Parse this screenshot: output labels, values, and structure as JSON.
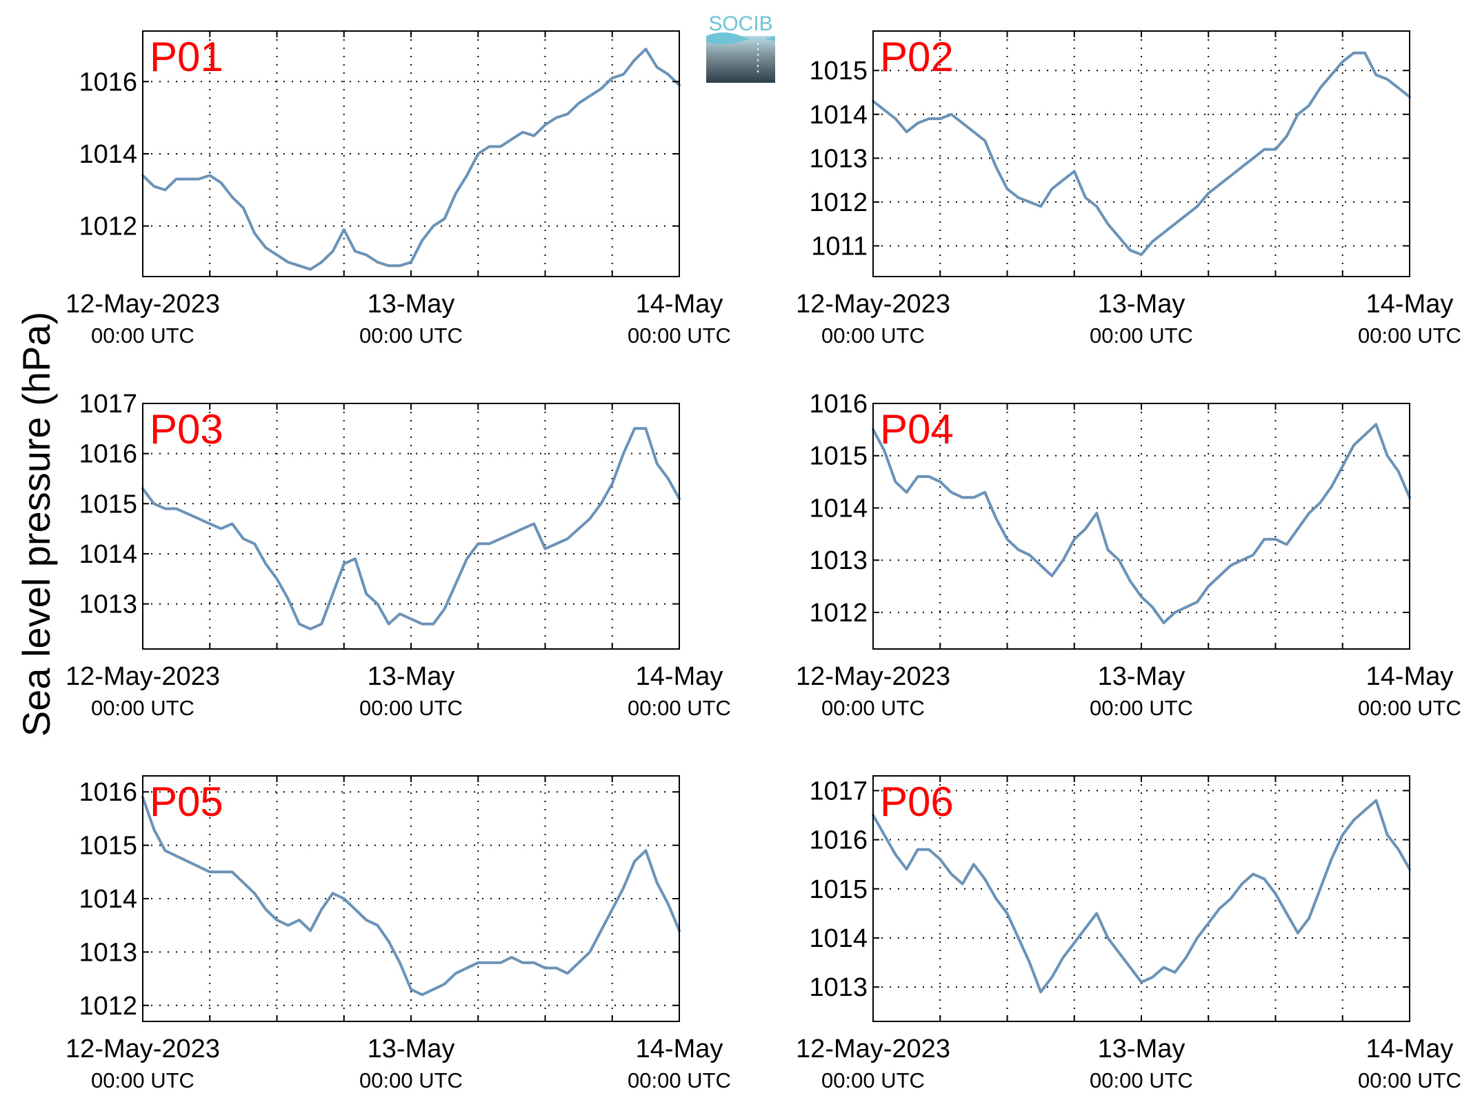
{
  "ylabel": "Sea level pressure (hPa)",
  "logo": {
    "text": "SOCIB",
    "colors": [
      "#6fc3d6",
      "#b8dde6",
      "#7a8c94",
      "#2c3e48"
    ]
  },
  "colors": {
    "series": "#6b93b8",
    "panel_label": "#ff0000"
  },
  "chart_data": [
    {
      "type": "line",
      "label": "P01",
      "x_ticks": [
        "12-May-2023",
        "13-May",
        "14-May"
      ],
      "x_tick_sublabels": [
        "00:00 UTC",
        "00:00 UTC",
        "00:00 UTC"
      ],
      "xlim": [
        0,
        48
      ],
      "ylim": [
        1010.6,
        1017.4
      ],
      "yticks": [
        1012,
        1014,
        1016
      ],
      "grid": true,
      "x": [
        0,
        1,
        2,
        3,
        4,
        5,
        6,
        7,
        8,
        9,
        10,
        11,
        12,
        13,
        14,
        15,
        16,
        17,
        18,
        19,
        20,
        21,
        22,
        23,
        24,
        25,
        26,
        27,
        28,
        29,
        30,
        31,
        32,
        33,
        34,
        35,
        36,
        37,
        38,
        39,
        40,
        41,
        42,
        43,
        44,
        45,
        46,
        47,
        48
      ],
      "y": [
        1013.4,
        1013.1,
        1013.0,
        1013.3,
        1013.3,
        1013.3,
        1013.4,
        1013.2,
        1012.8,
        1012.5,
        1011.8,
        1011.4,
        1011.2,
        1011.0,
        1010.9,
        1010.8,
        1011.0,
        1011.3,
        1011.9,
        1011.3,
        1011.2,
        1011.0,
        1010.9,
        1010.9,
        1011.0,
        1011.6,
        1012.0,
        1012.2,
        1012.9,
        1013.4,
        1014.0,
        1014.2,
        1014.2,
        1014.4,
        1014.6,
        1014.5,
        1014.8,
        1015.0,
        1015.1,
        1015.4,
        1015.6,
        1015.8,
        1016.1,
        1016.2,
        1016.6,
        1016.9,
        1016.4,
        1016.2,
        1015.9
      ]
    },
    {
      "type": "line",
      "label": "P02",
      "x_ticks": [
        "12-May-2023",
        "13-May",
        "14-May"
      ],
      "x_tick_sublabels": [
        "00:00 UTC",
        "00:00 UTC",
        "00:00 UTC"
      ],
      "xlim": [
        0,
        48
      ],
      "ylim": [
        1010.3,
        1015.9
      ],
      "yticks": [
        1011,
        1012,
        1013,
        1014,
        1015
      ],
      "grid": true,
      "x": [
        0,
        1,
        2,
        3,
        4,
        5,
        6,
        7,
        8,
        9,
        10,
        11,
        12,
        13,
        14,
        15,
        16,
        17,
        18,
        19,
        20,
        21,
        22,
        23,
        24,
        25,
        26,
        27,
        28,
        29,
        30,
        31,
        32,
        33,
        34,
        35,
        36,
        37,
        38,
        39,
        40,
        41,
        42,
        43,
        44,
        45,
        46,
        47,
        48
      ],
      "y": [
        1014.3,
        1014.1,
        1013.9,
        1013.6,
        1013.8,
        1013.9,
        1013.9,
        1014.0,
        1013.8,
        1013.6,
        1013.4,
        1012.8,
        1012.3,
        1012.1,
        1012.0,
        1011.9,
        1012.3,
        1012.5,
        1012.7,
        1012.1,
        1011.9,
        1011.5,
        1011.2,
        1010.9,
        1010.8,
        1011.1,
        1011.3,
        1011.5,
        1011.7,
        1011.9,
        1012.2,
        1012.4,
        1012.6,
        1012.8,
        1013.0,
        1013.2,
        1013.2,
        1013.5,
        1014.0,
        1014.2,
        1014.6,
        1014.9,
        1015.2,
        1015.4,
        1015.4,
        1014.9,
        1014.8,
        1014.6,
        1014.4
      ]
    },
    {
      "type": "line",
      "label": "P03",
      "x_ticks": [
        "12-May-2023",
        "13-May",
        "14-May"
      ],
      "x_tick_sublabels": [
        "00:00 UTC",
        "00:00 UTC",
        "00:00 UTC"
      ],
      "xlim": [
        0,
        48
      ],
      "ylim": [
        1012.1,
        1017.0
      ],
      "yticks": [
        1013,
        1014,
        1015,
        1016,
        1017
      ],
      "grid": true,
      "x": [
        0,
        1,
        2,
        3,
        4,
        5,
        6,
        7,
        8,
        9,
        10,
        11,
        12,
        13,
        14,
        15,
        16,
        17,
        18,
        19,
        20,
        21,
        22,
        23,
        24,
        25,
        26,
        27,
        28,
        29,
        30,
        31,
        32,
        33,
        34,
        35,
        36,
        37,
        38,
        39,
        40,
        41,
        42,
        43,
        44,
        45,
        46,
        47,
        48
      ],
      "y": [
        1015.3,
        1015.0,
        1014.9,
        1014.9,
        1014.8,
        1014.7,
        1014.6,
        1014.5,
        1014.6,
        1014.3,
        1014.2,
        1013.8,
        1013.5,
        1013.1,
        1012.6,
        1012.5,
        1012.6,
        1013.2,
        1013.8,
        1013.9,
        1013.2,
        1013.0,
        1012.6,
        1012.8,
        1012.7,
        1012.6,
        1012.6,
        1012.9,
        1013.4,
        1013.9,
        1014.2,
        1014.2,
        1014.3,
        1014.4,
        1014.5,
        1014.6,
        1014.1,
        1014.2,
        1014.3,
        1014.5,
        1014.7,
        1015.0,
        1015.4,
        1016.0,
        1016.5,
        1016.5,
        1015.8,
        1015.5,
        1015.1
      ]
    },
    {
      "type": "line",
      "label": "P04",
      "x_ticks": [
        "12-May-2023",
        "13-May",
        "14-May"
      ],
      "x_tick_sublabels": [
        "00:00 UTC",
        "00:00 UTC",
        "00:00 UTC"
      ],
      "xlim": [
        0,
        48
      ],
      "ylim": [
        1011.3,
        1016.0
      ],
      "yticks": [
        1012,
        1013,
        1014,
        1015,
        1016
      ],
      "grid": true,
      "x": [
        0,
        1,
        2,
        3,
        4,
        5,
        6,
        7,
        8,
        9,
        10,
        11,
        12,
        13,
        14,
        15,
        16,
        17,
        18,
        19,
        20,
        21,
        22,
        23,
        24,
        25,
        26,
        27,
        28,
        29,
        30,
        31,
        32,
        33,
        34,
        35,
        36,
        37,
        38,
        39,
        40,
        41,
        42,
        43,
        44,
        45,
        46,
        47,
        48
      ],
      "y": [
        1015.5,
        1015.1,
        1014.5,
        1014.3,
        1014.6,
        1014.6,
        1014.5,
        1014.3,
        1014.2,
        1014.2,
        1014.3,
        1013.8,
        1013.4,
        1013.2,
        1013.1,
        1012.9,
        1012.7,
        1013.0,
        1013.4,
        1013.6,
        1013.9,
        1013.2,
        1013.0,
        1012.6,
        1012.3,
        1012.1,
        1011.8,
        1012.0,
        1012.1,
        1012.2,
        1012.5,
        1012.7,
        1012.9,
        1013.0,
        1013.1,
        1013.4,
        1013.4,
        1013.3,
        1013.6,
        1013.9,
        1014.1,
        1014.4,
        1014.8,
        1015.2,
        1015.4,
        1015.6,
        1015.0,
        1014.7,
        1014.2
      ]
    },
    {
      "type": "line",
      "label": "P05",
      "x_ticks": [
        "12-May-2023",
        "13-May",
        "14-May"
      ],
      "x_tick_sublabels": [
        "00:00 UTC",
        "00:00 UTC",
        "00:00 UTC"
      ],
      "xlim": [
        0,
        48
      ],
      "ylim": [
        1011.7,
        1016.3
      ],
      "yticks": [
        1012,
        1013,
        1014,
        1015,
        1016
      ],
      "grid": true,
      "x": [
        0,
        1,
        2,
        3,
        4,
        5,
        6,
        7,
        8,
        9,
        10,
        11,
        12,
        13,
        14,
        15,
        16,
        17,
        18,
        19,
        20,
        21,
        22,
        23,
        24,
        25,
        26,
        27,
        28,
        29,
        30,
        31,
        32,
        33,
        34,
        35,
        36,
        37,
        38,
        39,
        40,
        41,
        42,
        43,
        44,
        45,
        46,
        47,
        48
      ],
      "y": [
        1015.9,
        1015.3,
        1014.9,
        1014.8,
        1014.7,
        1014.6,
        1014.5,
        1014.5,
        1014.5,
        1014.3,
        1014.1,
        1013.8,
        1013.6,
        1013.5,
        1013.6,
        1013.4,
        1013.8,
        1014.1,
        1014.0,
        1013.8,
        1013.6,
        1013.5,
        1013.2,
        1012.8,
        1012.3,
        1012.2,
        1012.3,
        1012.4,
        1012.6,
        1012.7,
        1012.8,
        1012.8,
        1012.8,
        1012.9,
        1012.8,
        1012.8,
        1012.7,
        1012.7,
        1012.6,
        1012.8,
        1013.0,
        1013.4,
        1013.8,
        1014.2,
        1014.7,
        1014.9,
        1014.3,
        1013.9,
        1013.4
      ]
    },
    {
      "type": "line",
      "label": "P06",
      "x_ticks": [
        "12-May-2023",
        "13-May",
        "14-May"
      ],
      "x_tick_sublabels": [
        "00:00 UTC",
        "00:00 UTC",
        "00:00 UTC"
      ],
      "xlim": [
        0,
        48
      ],
      "ylim": [
        1012.3,
        1017.3
      ],
      "yticks": [
        1013,
        1014,
        1015,
        1016,
        1017
      ],
      "grid": true,
      "x": [
        0,
        1,
        2,
        3,
        4,
        5,
        6,
        7,
        8,
        9,
        10,
        11,
        12,
        13,
        14,
        15,
        16,
        17,
        18,
        19,
        20,
        21,
        22,
        23,
        24,
        25,
        26,
        27,
        28,
        29,
        30,
        31,
        32,
        33,
        34,
        35,
        36,
        37,
        38,
        39,
        40,
        41,
        42,
        43,
        44,
        45,
        46,
        47,
        48
      ],
      "y": [
        1016.5,
        1016.1,
        1015.7,
        1015.4,
        1015.8,
        1015.8,
        1015.6,
        1015.3,
        1015.1,
        1015.5,
        1015.2,
        1014.8,
        1014.5,
        1014.0,
        1013.5,
        1012.9,
        1013.2,
        1013.6,
        1013.9,
        1014.2,
        1014.5,
        1014.0,
        1013.7,
        1013.4,
        1013.1,
        1013.2,
        1013.4,
        1013.3,
        1013.6,
        1014.0,
        1014.3,
        1014.6,
        1014.8,
        1015.1,
        1015.3,
        1015.2,
        1014.9,
        1014.5,
        1014.1,
        1014.4,
        1015.0,
        1015.6,
        1016.1,
        1016.4,
        1016.6,
        1016.8,
        1016.1,
        1015.8,
        1015.4
      ]
    }
  ]
}
